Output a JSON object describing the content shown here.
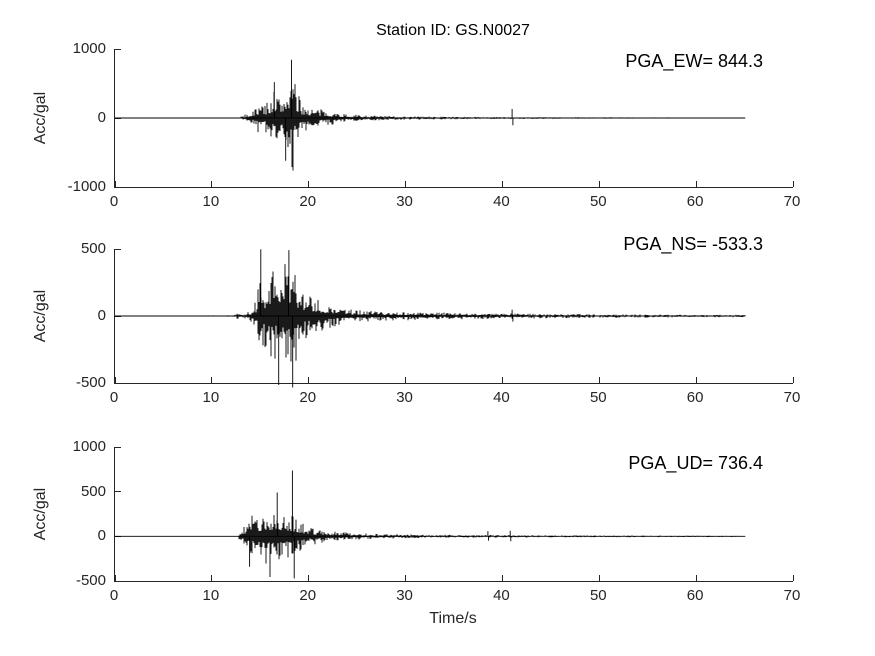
{
  "figure": {
    "title": "Station ID: GS.N0027",
    "station_id": "GS.N0027",
    "xlabel": "Time/s",
    "background": "#ffffff",
    "axis_color": "#262626",
    "trace_color": "#000000"
  },
  "chart_data": [
    {
      "type": "line",
      "component": "EW",
      "annotation": "PGA_EW= 844.3",
      "pga": 844.3,
      "pga_time_s": 18.2,
      "ylabel": "Acc/gal",
      "xlim": [
        0,
        70
      ],
      "xticks": [
        0,
        10,
        20,
        30,
        40,
        50,
        60,
        70
      ],
      "ylim": [
        -1000,
        1000
      ],
      "yticks": [
        1000,
        0,
        -1000
      ],
      "t_end": 65,
      "grid": false,
      "envelope": [
        [
          0,
          3
        ],
        [
          12,
          4
        ],
        [
          12.8,
          8
        ],
        [
          13.2,
          35
        ],
        [
          14,
          90
        ],
        [
          14.5,
          150
        ],
        [
          15,
          260
        ],
        [
          15.5,
          210
        ],
        [
          16,
          310
        ],
        [
          16.4,
          430
        ],
        [
          16.8,
          350
        ],
        [
          17.2,
          300
        ],
        [
          17.6,
          470
        ],
        [
          18,
          620
        ],
        [
          18.25,
          800
        ],
        [
          18.5,
          560
        ],
        [
          18.8,
          380
        ],
        [
          19.2,
          250
        ],
        [
          19.8,
          190
        ],
        [
          20.5,
          150
        ],
        [
          21.5,
          120
        ],
        [
          22.5,
          95
        ],
        [
          23.5,
          65
        ],
        [
          25,
          45
        ],
        [
          27,
          35
        ],
        [
          30,
          27
        ],
        [
          34,
          20
        ],
        [
          38,
          16
        ],
        [
          42,
          14
        ],
        [
          47,
          12
        ],
        [
          52,
          10
        ],
        [
          58,
          9
        ],
        [
          65,
          8
        ]
      ],
      "spikes": [
        {
          "t": 18.22,
          "v": 844.3
        },
        {
          "t": 18.38,
          "v": -760
        },
        {
          "t": 17.62,
          "v": -620
        },
        {
          "t": 16.45,
          "v": 520
        },
        {
          "t": 41.0,
          "v": 130
        },
        {
          "t": 41.08,
          "v": -105
        }
      ]
    },
    {
      "type": "line",
      "component": "NS",
      "annotation": "PGA_NS= -533.3",
      "pga": -533.3,
      "pga_time_s": 18.35,
      "ylabel": "Acc/gal",
      "xlim": [
        0,
        70
      ],
      "xticks": [
        0,
        10,
        20,
        30,
        40,
        50,
        60,
        70
      ],
      "ylim": [
        -500,
        500
      ],
      "yticks": [
        500,
        0,
        -500
      ],
      "t_end": 65,
      "grid": false,
      "envelope": [
        [
          0,
          3
        ],
        [
          12.3,
          5
        ],
        [
          12.7,
          25
        ],
        [
          13.1,
          10
        ],
        [
          14,
          40
        ],
        [
          14.6,
          120
        ],
        [
          14.9,
          300
        ],
        [
          15.1,
          460
        ],
        [
          15.4,
          260
        ],
        [
          15.8,
          300
        ],
        [
          16.2,
          350
        ],
        [
          16.6,
          320
        ],
        [
          17,
          420
        ],
        [
          17.4,
          380
        ],
        [
          17.8,
          460
        ],
        [
          18.1,
          420
        ],
        [
          18.45,
          480
        ],
        [
          18.8,
          300
        ],
        [
          19.2,
          220
        ],
        [
          19.8,
          170
        ],
        [
          20.5,
          140
        ],
        [
          21.5,
          110
        ],
        [
          22.5,
          85
        ],
        [
          23.5,
          60
        ],
        [
          25,
          45
        ],
        [
          27,
          38
        ],
        [
          30,
          32
        ],
        [
          33,
          26
        ],
        [
          36,
          24
        ],
        [
          39,
          22
        ],
        [
          42,
          19
        ],
        [
          46,
          17
        ],
        [
          50,
          14
        ],
        [
          55,
          12
        ],
        [
          60,
          10
        ],
        [
          65,
          9
        ]
      ],
      "spikes": [
        {
          "t": 15.05,
          "v": 498
        },
        {
          "t": 16.9,
          "v": -515
        },
        {
          "t": 18.35,
          "v": -533.3
        },
        {
          "t": 17.95,
          "v": 492
        },
        {
          "t": 41.0,
          "v": 48
        },
        {
          "t": 41.08,
          "v": -42
        }
      ]
    },
    {
      "type": "line",
      "component": "UD",
      "annotation": "PGA_UD= 736.4",
      "pga": 736.4,
      "pga_time_s": 18.32,
      "ylabel": "Acc/gal",
      "xlim": [
        0,
        70
      ],
      "xticks": [
        0,
        10,
        20,
        30,
        40,
        50,
        60,
        70
      ],
      "ylim": [
        -500,
        1000
      ],
      "yticks": [
        1000,
        500,
        0,
        -500
      ],
      "t_end": 65,
      "grid": false,
      "envelope": [
        [
          0,
          3
        ],
        [
          12.6,
          5
        ],
        [
          13,
          60
        ],
        [
          13.4,
          130
        ],
        [
          13.8,
          200
        ],
        [
          14.3,
          250
        ],
        [
          14.8,
          270
        ],
        [
          15.3,
          290
        ],
        [
          15.8,
          320
        ],
        [
          16.3,
          300
        ],
        [
          16.8,
          330
        ],
        [
          17.3,
          290
        ],
        [
          17.8,
          260
        ],
        [
          18.2,
          270
        ],
        [
          18.6,
          240
        ],
        [
          19,
          180
        ],
        [
          19.6,
          130
        ],
        [
          20.3,
          100
        ],
        [
          21,
          80
        ],
        [
          22,
          65
        ],
        [
          23,
          55
        ],
        [
          24.5,
          42
        ],
        [
          26,
          32
        ],
        [
          28,
          26
        ],
        [
          31,
          22
        ],
        [
          34,
          18
        ],
        [
          37,
          16
        ],
        [
          40,
          14
        ],
        [
          44,
          12
        ],
        [
          48,
          11
        ],
        [
          53,
          10
        ],
        [
          58,
          9
        ],
        [
          65,
          8
        ]
      ],
      "spikes": [
        {
          "t": 18.32,
          "v": 736.4
        },
        {
          "t": 16.75,
          "v": 490
        },
        {
          "t": 16.0,
          "v": -455
        },
        {
          "t": 18.5,
          "v": -470
        },
        {
          "t": 13.9,
          "v": -340
        },
        {
          "t": 38.5,
          "v": 58
        },
        {
          "t": 38.56,
          "v": -48
        },
        {
          "t": 40.8,
          "v": 62
        },
        {
          "t": 40.86,
          "v": -55
        }
      ]
    }
  ]
}
